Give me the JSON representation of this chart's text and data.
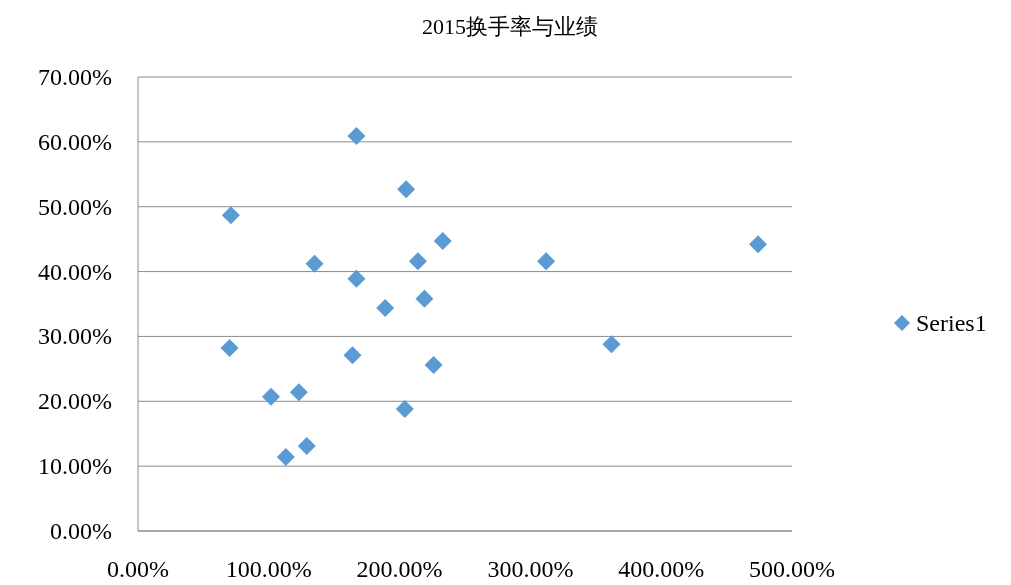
{
  "chart_data": {
    "type": "scatter",
    "title": "2015换手率与业绩",
    "x": [
      71,
      70,
      101.7,
      113,
      123,
      129,
      135,
      167,
      167,
      164,
      189,
      205,
      204,
      214,
      219,
      226,
      233,
      312,
      362,
      474
    ],
    "series": [
      {
        "name": "Series1",
        "color": "#5b9bd5",
        "values": [
          48.7,
          28.2,
          20.7,
          11.4,
          21.4,
          13.1,
          41.2,
          60.9,
          38.9,
          27.1,
          34.4,
          52.7,
          18.8,
          41.6,
          35.8,
          25.6,
          44.7,
          41.6,
          28.8,
          44.2
        ]
      }
    ],
    "xlim": [
      0,
      500
    ],
    "ylim": [
      0,
      70
    ],
    "xticks": [
      {
        "value": 0,
        "label": "0.00%"
      },
      {
        "value": 100,
        "label": "100.00%"
      },
      {
        "value": 200,
        "label": "200.00%"
      },
      {
        "value": 300,
        "label": "300.00%"
      },
      {
        "value": 400,
        "label": "400.00%"
      },
      {
        "value": 500,
        "label": "500.00%"
      }
    ],
    "yticks": [
      {
        "value": 0,
        "label": "0.00%"
      },
      {
        "value": 10,
        "label": "10.00%"
      },
      {
        "value": 20,
        "label": "20.00%"
      },
      {
        "value": 30,
        "label": "30.00%"
      },
      {
        "value": 40,
        "label": "40.00%"
      },
      {
        "value": 50,
        "label": "50.00%"
      },
      {
        "value": 60,
        "label": "60.00%"
      },
      {
        "value": 70,
        "label": "70.00%"
      }
    ],
    "grid": "y",
    "legend": "right",
    "marker": "diamond"
  }
}
